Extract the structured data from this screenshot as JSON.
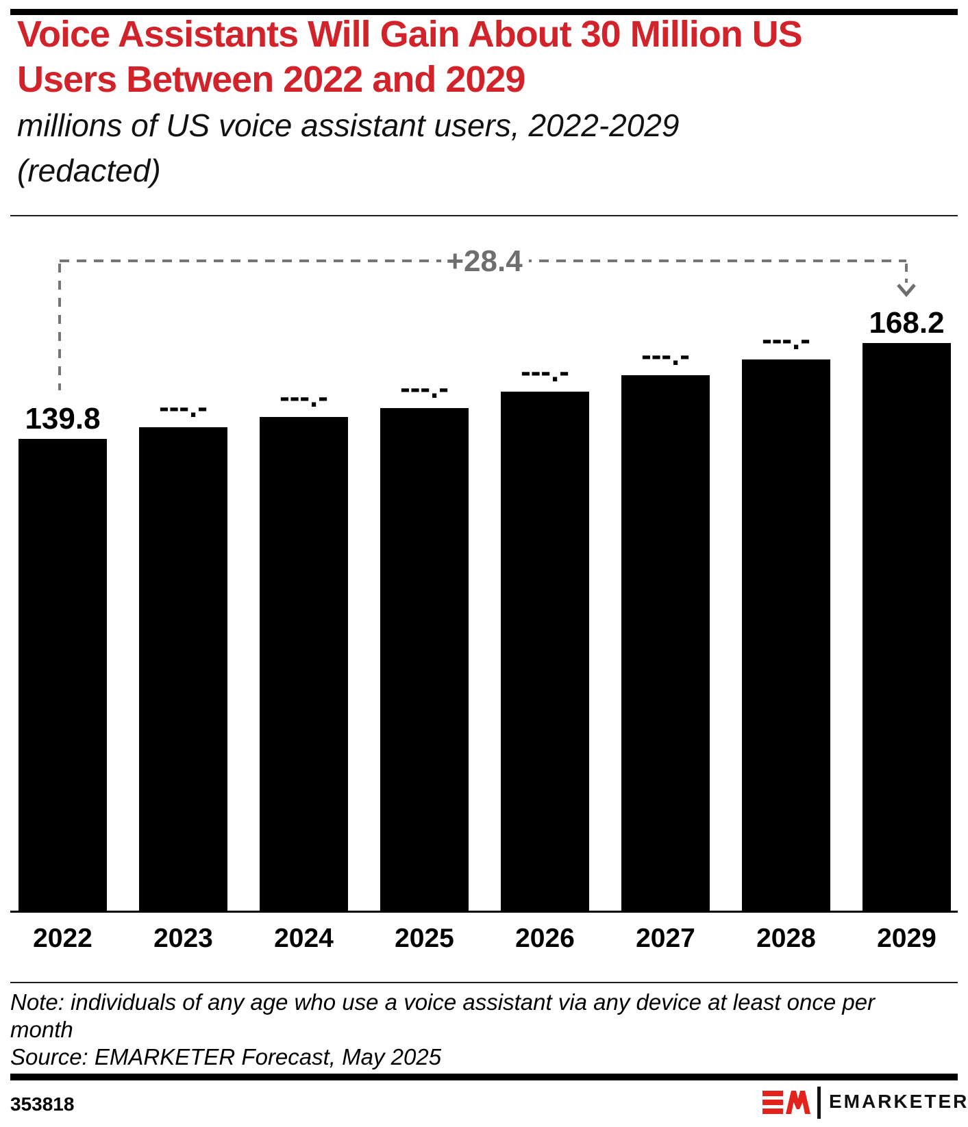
{
  "header": {
    "title_line1": "Voice Assistants Will Gain About 30 Million US",
    "title_line2": "Users Between 2022 and 2029",
    "subtitle_line1": "millions of US voice assistant users, 2022-2029",
    "subtitle_line2": "(redacted)"
  },
  "chart_data": {
    "type": "bar",
    "title": "Voice Assistants Will Gain About 30 Million US Users Between 2022 and 2029",
    "subtitle": "millions of US voice assistant users, 2022-2029 (redacted)",
    "categories": [
      "2022",
      "2023",
      "2024",
      "2025",
      "2026",
      "2027",
      "2028",
      "2029"
    ],
    "values": [
      139.8,
      143.3,
      146.2,
      148.9,
      153.8,
      158.7,
      163.4,
      168.2
    ],
    "value_labels": [
      "139.8",
      "---.-",
      "---.-",
      "---.-",
      "---.-",
      "---.-",
      "---.-",
      "168.2"
    ],
    "redacted_label": "---.-",
    "values_estimated_for_redacted_bars": true,
    "annotation": {
      "label": "+28.4",
      "from_category": "2022",
      "to_category": "2029"
    },
    "xlabel": "",
    "ylabel": "millions of US voice assistant users",
    "ylim": [
      0,
      192
    ],
    "grid": false,
    "legend": false,
    "bar_color": "#000000"
  },
  "footer": {
    "note_line1": "Note: individuals of any age who use a voice assistant via any device at least once per",
    "note_line2": "month",
    "source": "Source: EMARKETER Forecast, May 2025",
    "chart_id": "353818",
    "brand": "EMARKETER"
  },
  "colors": {
    "title_red": "#D2232A",
    "logo_red": "#E2231B",
    "bar_black": "#000000",
    "annotation_gray": "#757575",
    "annotation_text_gray": "#6e6e6e"
  }
}
